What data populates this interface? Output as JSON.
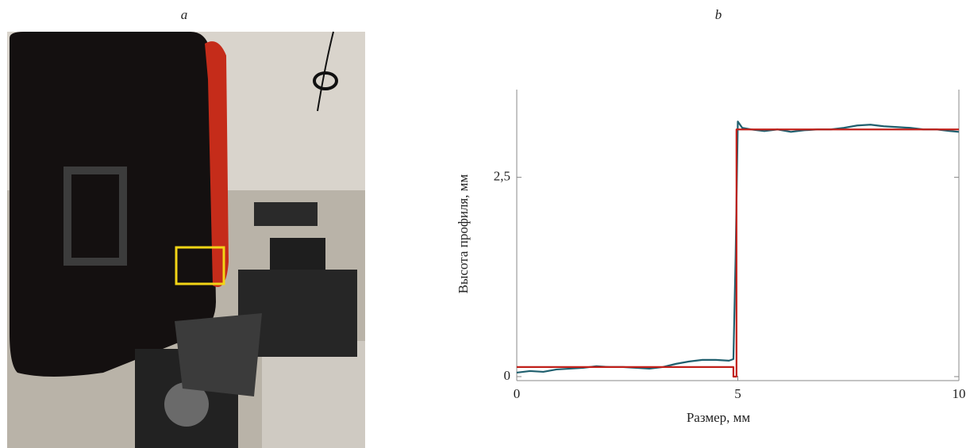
{
  "panel_labels": [
    "a",
    "b"
  ],
  "chart_data": {
    "type": "line",
    "xlabel": "Размер, мм",
    "ylabel": "Высота профиля, мм",
    "xlim": [
      0,
      10
    ],
    "xticks": [
      0,
      5,
      10
    ],
    "ylim": [
      -0.05,
      3.6
    ],
    "yticks": [
      0,
      {
        "value": 2.5,
        "label": "2,5"
      }
    ],
    "series": [
      {
        "color": "#1f5f6e",
        "x": [
          0,
          0.3,
          0.6,
          0.9,
          1.2,
          1.5,
          1.8,
          2.1,
          2.4,
          2.7,
          3.0,
          3.3,
          3.6,
          3.9,
          4.2,
          4.5,
          4.8,
          4.9,
          4.95,
          5.0,
          5.1,
          5.3,
          5.6,
          5.9,
          6.2,
          6.5,
          6.8,
          7.1,
          7.4,
          7.7,
          8.0,
          8.3,
          8.6,
          8.9,
          9.2,
          9.5,
          9.8,
          10
        ],
        "values": [
          0.05,
          0.07,
          0.06,
          0.09,
          0.1,
          0.11,
          0.13,
          0.12,
          0.12,
          0.11,
          0.1,
          0.12,
          0.16,
          0.19,
          0.21,
          0.21,
          0.2,
          0.22,
          1.5,
          3.2,
          3.12,
          3.1,
          3.08,
          3.1,
          3.07,
          3.09,
          3.1,
          3.1,
          3.12,
          3.15,
          3.16,
          3.14,
          3.13,
          3.12,
          3.1,
          3.1,
          3.08,
          3.07
        ]
      },
      {
        "color": "#c0201a",
        "x": [
          0,
          4.9,
          4.9,
          4.97,
          4.97,
          10
        ],
        "values": [
          0.12,
          0.12,
          0,
          0,
          3.1,
          3.1
        ]
      }
    ]
  }
}
